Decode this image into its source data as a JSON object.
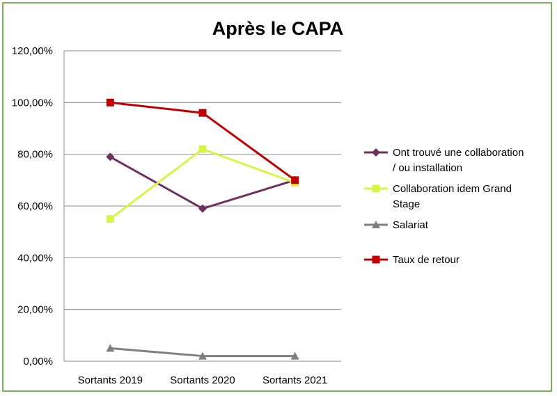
{
  "chart_data": {
    "type": "line",
    "title": "Après le CAPA",
    "xlabel": "",
    "ylabel": "",
    "categories": [
      "Sortants 2019",
      "Sortants 2020",
      "Sortants 2021"
    ],
    "ylim": [
      0,
      120
    ],
    "y_ticks": [
      "0,00%",
      "20,00%",
      "40,00%",
      "60,00%",
      "80,00%",
      "100,00%",
      "120,00%"
    ],
    "grid": true,
    "legend_position": "right",
    "series": [
      {
        "name": "Ont trouvé une collaboration / ou installation",
        "legend_lines": [
          "Ont trouvé une collaboration",
          "/ ou installation"
        ],
        "values": [
          79,
          59,
          70
        ],
        "color": "#70305f",
        "marker": "diamond"
      },
      {
        "name": "Collaboration idem Grand Stage",
        "legend_lines": [
          "Collaboration idem Grand",
          "Stage"
        ],
        "values": [
          55,
          82,
          69
        ],
        "color": "#d8f546",
        "marker": "square"
      },
      {
        "name": "Salariat",
        "legend_lines": [
          "Salariat"
        ],
        "values": [
          5,
          2,
          2
        ],
        "color": "#808080",
        "marker": "triangle"
      },
      {
        "name": "Taux de retour",
        "legend_lines": [
          "Taux de retour"
        ],
        "values": [
          100,
          96,
          70
        ],
        "color": "#c00000",
        "marker": "square"
      }
    ]
  }
}
